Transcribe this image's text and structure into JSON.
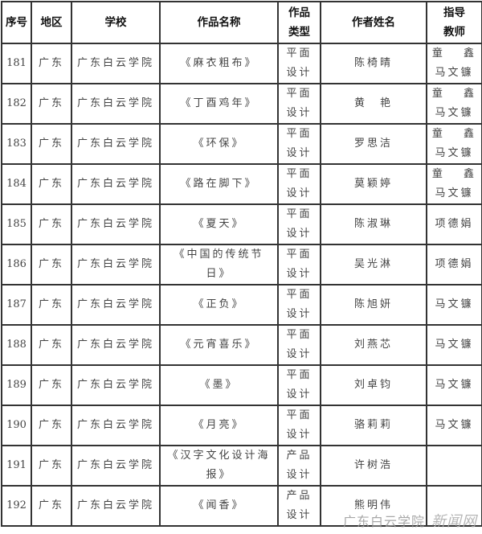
{
  "headers": [
    "序号",
    "地区",
    "学校",
    "作品名称",
    "作品\n类型",
    "作者姓名",
    "指导\n教师"
  ],
  "rows": [
    {
      "no": "181",
      "region": "广东",
      "school": "广东白云学院",
      "title": "《麻衣粗布》",
      "type": "平面\n设计",
      "author": "陈椅晴",
      "teacher": "童　 鑫\n马文镰"
    },
    {
      "no": "182",
      "region": "广东",
      "school": "广东白云学院",
      "title": "《丁酉鸡年》",
      "type": "平面\n设计",
      "author": "黄　艳",
      "teacher": "童　 鑫\n马文镰"
    },
    {
      "no": "183",
      "region": "广东",
      "school": "广东白云学院",
      "title": "《环保》",
      "type": "平面\n设计",
      "author": "罗思洁",
      "teacher": "童　 鑫\n马文镰"
    },
    {
      "no": "184",
      "region": "广东",
      "school": "广东白云学院",
      "title": "《路在脚下》",
      "type": "平面\n设计",
      "author": "莫颖婷",
      "teacher": "童　 鑫\n马文镰"
    },
    {
      "no": "185",
      "region": "广东",
      "school": "广东白云学院",
      "title": "《夏天》",
      "type": "平面\n设计",
      "author": "陈淑琳",
      "teacher": "项德娟"
    },
    {
      "no": "186",
      "region": "广东",
      "school": "广东白云学院",
      "title": "《中国的传统节\n日》",
      "type": "平面\n设计",
      "author": "吴光淋",
      "teacher": "项德娟"
    },
    {
      "no": "187",
      "region": "广东",
      "school": "广东白云学院",
      "title": "《正负》",
      "type": "平面\n设计",
      "author": "陈旭妍",
      "teacher": "马文镰"
    },
    {
      "no": "188",
      "region": "广东",
      "school": "广东白云学院",
      "title": "《元宵喜乐》",
      "type": "平面\n设计",
      "author": "刘燕芯",
      "teacher": "马文镰"
    },
    {
      "no": "189",
      "region": "广东",
      "school": "广东白云学院",
      "title": "《墨》",
      "type": "平面\n设计",
      "author": "刘卓钧",
      "teacher": "马文镰"
    },
    {
      "no": "190",
      "region": "广东",
      "school": "广东白云学院",
      "title": "《月亮》",
      "type": "平面\n设计",
      "author": "骆莉莉",
      "teacher": "马文镰"
    },
    {
      "no": "191",
      "region": "广东",
      "school": "广东白云学院",
      "title": "《汉字文化设计海\n报》",
      "type": "产品\n设计",
      "author": "许树浩",
      "teacher": ""
    },
    {
      "no": "192",
      "region": "广东",
      "school": "广东白云学院",
      "title": "《闻香》",
      "type": "产品\n设计",
      "author": "熊明伟",
      "teacher": ""
    }
  ],
  "watermark": {
    "text": "广东白云学院",
    "suffix": "新闻网"
  }
}
